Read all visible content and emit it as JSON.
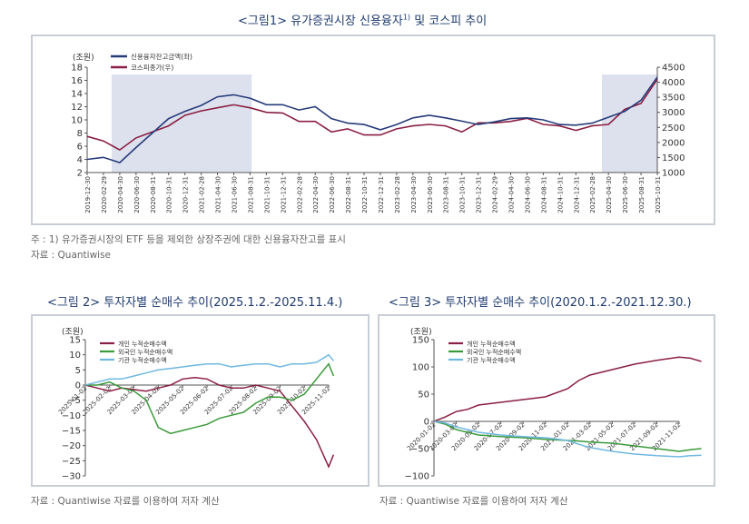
{
  "figure1": {
    "title": "<그림1> 유가증권시장 신용융자",
    "title_sup": "1)",
    "title_tail": " 및 코스피 추이",
    "unit_left": "(조원)",
    "note1": "주 : 1) 유가증권시장의 ETF 등을 제외한 상장주권에 대한 신용융자잔고를 표시",
    "note2": "자료 : Quantiwise"
  },
  "figure2": {
    "title": "<그림 2> 투자자별 순매수 추이(2025.1.2.-2025.11.4.)",
    "unit": "(조원)",
    "source": "자료 : Quantiwise 자료를 이용하여 저자 계산"
  },
  "figure3": {
    "title": "<그림 3> 투자자별 순매수 추이(2020.1.2.-2021.12.30.)",
    "unit": "(조원)",
    "source": "자료 : Quantiwise 자료를 이용하여 저자 계산"
  },
  "chart_data": [
    {
      "type": "line",
      "legend_placement": "top-left",
      "y_left_range": [
        2,
        18
      ],
      "y_left_ticks": [
        "2",
        "4",
        "6",
        "8",
        "10",
        "12",
        "14",
        "16",
        "18"
      ],
      "y_right_range": [
        1000,
        4500
      ],
      "y_right_ticks": [
        "1000",
        "1500",
        "2000",
        "2500",
        "3000",
        "3500",
        "4000",
        "4500"
      ],
      "x_tick_labels": [
        "2019-12-30",
        "2020-02-29",
        "2020-04-30",
        "2020-06-30",
        "2020-08-31",
        "2020-10-31",
        "2020-12-31",
        "2021-02-28",
        "2021-04-30",
        "2021-06-30",
        "2021-08-31",
        "2021-10-31",
        "2021-12-31",
        "2022-02-28",
        "2022-04-30",
        "2022-06-30",
        "2022-08-31",
        "2022-10-31",
        "2022-12-31",
        "2023-02-28",
        "2023-04-30",
        "2023-06-30",
        "2023-08-31",
        "2023-10-31",
        "2023-12-31",
        "2024-02-29",
        "2024-04-30",
        "2024-06-30",
        "2024-08-31",
        "2024-10-31",
        "2024-12-31",
        "2025-02-28",
        "2025-04-30",
        "2025-06-30",
        "2025-08-31",
        "2025-10-31"
      ],
      "shaded_periods": [
        [
          "2020-03",
          "2021-06"
        ],
        [
          "2025-03",
          "2025-10"
        ]
      ],
      "series": [
        {
          "name": "신용융자잔고금액(좌)",
          "axis": "left",
          "color": "#263b7a",
          "x": [
            0,
            1,
            2,
            3,
            4,
            5,
            6,
            7,
            8,
            9,
            10,
            11,
            12,
            13,
            14,
            15,
            16,
            17,
            18,
            19,
            20,
            21,
            22,
            23,
            24,
            25,
            26,
            27,
            28,
            29,
            30,
            31,
            32,
            33,
            34,
            35
          ],
          "values": [
            4.0,
            4.3,
            3.5,
            5.8,
            8.0,
            10.2,
            11.3,
            12.2,
            13.5,
            13.8,
            13.3,
            12.3,
            12.3,
            11.5,
            12.0,
            10.2,
            9.5,
            9.3,
            8.5,
            9.3,
            10.3,
            10.7,
            10.3,
            9.8,
            9.3,
            9.7,
            10.2,
            10.3,
            10.0,
            9.3,
            9.2,
            9.5,
            10.4,
            11.3,
            13.0,
            16.5
          ]
        },
        {
          "name": "코스피종가(우)",
          "axis": "right",
          "color": "#8a1f42",
          "x": [
            0,
            1,
            2,
            3,
            4,
            5,
            6,
            7,
            8,
            9,
            10,
            11,
            12,
            13,
            14,
            15,
            16,
            17,
            18,
            19,
            20,
            21,
            22,
            23,
            24,
            25,
            26,
            27,
            28,
            29,
            30,
            31,
            32,
            33,
            34,
            35
          ],
          "values": [
            2200,
            2050,
            1750,
            2150,
            2350,
            2550,
            2900,
            3050,
            3150,
            3250,
            3150,
            3000,
            2980,
            2700,
            2700,
            2350,
            2450,
            2250,
            2250,
            2450,
            2550,
            2600,
            2550,
            2350,
            2650,
            2650,
            2700,
            2800,
            2600,
            2550,
            2400,
            2550,
            2600,
            3100,
            3300,
            4100
          ]
        }
      ]
    },
    {
      "type": "line",
      "legend_placement": "top-left",
      "ylim": [
        -30,
        15
      ],
      "y_ticks": [
        "15",
        "10",
        "5",
        "0",
        "−5",
        "−10",
        "−15",
        "−20",
        "−25",
        "−30"
      ],
      "x_tick_labels": [
        "2025-01-02",
        "2025-02-02",
        "2025-03-02",
        "2025-04-02",
        "2025-05-02",
        "2025-06-02",
        "2025-07-02",
        "2025-08-02",
        "2025-09-02",
        "2025-10-02",
        "2025-11-02"
      ],
      "series": [
        {
          "name": "개인 누적순매수액",
          "color": "#8a1f42",
          "x": [
            0,
            0.5,
            1,
            1.5,
            2,
            2.5,
            3,
            3.5,
            4,
            4.5,
            5,
            5.5,
            6,
            6.5,
            7,
            7.5,
            8,
            8.5,
            9,
            9.5,
            10,
            10.2
          ],
          "values": [
            0,
            -1,
            -2,
            -1,
            -1.5,
            -2,
            -1,
            0,
            2,
            2.5,
            2,
            0,
            -1,
            -1,
            0,
            -1,
            -2,
            -7,
            -12,
            -18,
            -27,
            -23
          ]
        },
        {
          "name": "외국인 누적순매수액",
          "color": "#3a9a3a",
          "x": [
            0,
            0.5,
            1,
            1.5,
            2,
            2.5,
            3,
            3.5,
            4,
            4.5,
            5,
            5.5,
            6,
            6.5,
            7,
            7.5,
            8,
            8.5,
            9,
            9.5,
            10,
            10.2
          ],
          "values": [
            0,
            0,
            1,
            -1,
            -2,
            -5,
            -14,
            -16,
            -15,
            -14,
            -13,
            -11,
            -10,
            -9,
            -6,
            -4,
            -4,
            -5,
            -3,
            2,
            7,
            3
          ]
        },
        {
          "name": "기관 누적순매수액",
          "color": "#6eb8e0",
          "x": [
            0,
            0.5,
            1,
            1.5,
            2,
            2.5,
            3,
            3.5,
            4,
            4.5,
            5,
            5.5,
            6,
            6.5,
            7,
            7.5,
            8,
            8.5,
            9,
            9.5,
            10,
            10.2
          ],
          "values": [
            0,
            1,
            2,
            2,
            3,
            4,
            5,
            5.5,
            6,
            6.5,
            7,
            7,
            6,
            6.5,
            7,
            7,
            6,
            7,
            7,
            7.5,
            10,
            8
          ]
        }
      ]
    },
    {
      "type": "line",
      "legend_placement": "top-left",
      "ylim": [
        -100,
        150
      ],
      "y_ticks": [
        "150",
        "100",
        "50",
        "0",
        "−50",
        "−100"
      ],
      "x_tick_labels": [
        "2020-01-02",
        "2020-03-02",
        "2020-05-02",
        "2020-07-02",
        "2020-09-02",
        "2020-11-02",
        "2021-01-02",
        "2021-03-02",
        "2021-05-02",
        "2021-07-02",
        "2021-09-02",
        "2021-11-02"
      ],
      "series": [
        {
          "name": "개인 누적순매수액",
          "color": "#8a1f42",
          "x": [
            0,
            0.5,
            1,
            1.5,
            2,
            3,
            4,
            5,
            6,
            6.5,
            7,
            8,
            9,
            10,
            11,
            11.5,
            12
          ],
          "values": [
            0,
            8,
            18,
            22,
            30,
            35,
            40,
            45,
            60,
            75,
            85,
            95,
            105,
            112,
            118,
            116,
            110
          ]
        },
        {
          "name": "외국인 누적순매수액",
          "color": "#3a9a3a",
          "x": [
            0,
            0.5,
            1,
            1.5,
            2,
            3,
            4,
            5,
            6,
            6.5,
            7,
            8,
            9,
            10,
            11,
            11.5,
            12
          ],
          "values": [
            0,
            -5,
            -15,
            -20,
            -25,
            -28,
            -30,
            -33,
            -35,
            -36,
            -38,
            -40,
            -45,
            -50,
            -55,
            -52,
            -50
          ]
        },
        {
          "name": "기관 누적순매수액",
          "color": "#6eb8e0",
          "x": [
            0,
            0.5,
            1,
            1.5,
            2,
            3,
            4,
            5,
            6,
            6.5,
            7,
            8,
            9,
            10,
            11,
            11.5,
            12
          ],
          "values": [
            0,
            -3,
            -10,
            -15,
            -20,
            -25,
            -28,
            -30,
            -35,
            -42,
            -48,
            -55,
            -60,
            -63,
            -65,
            -63,
            -62
          ]
        }
      ]
    }
  ]
}
